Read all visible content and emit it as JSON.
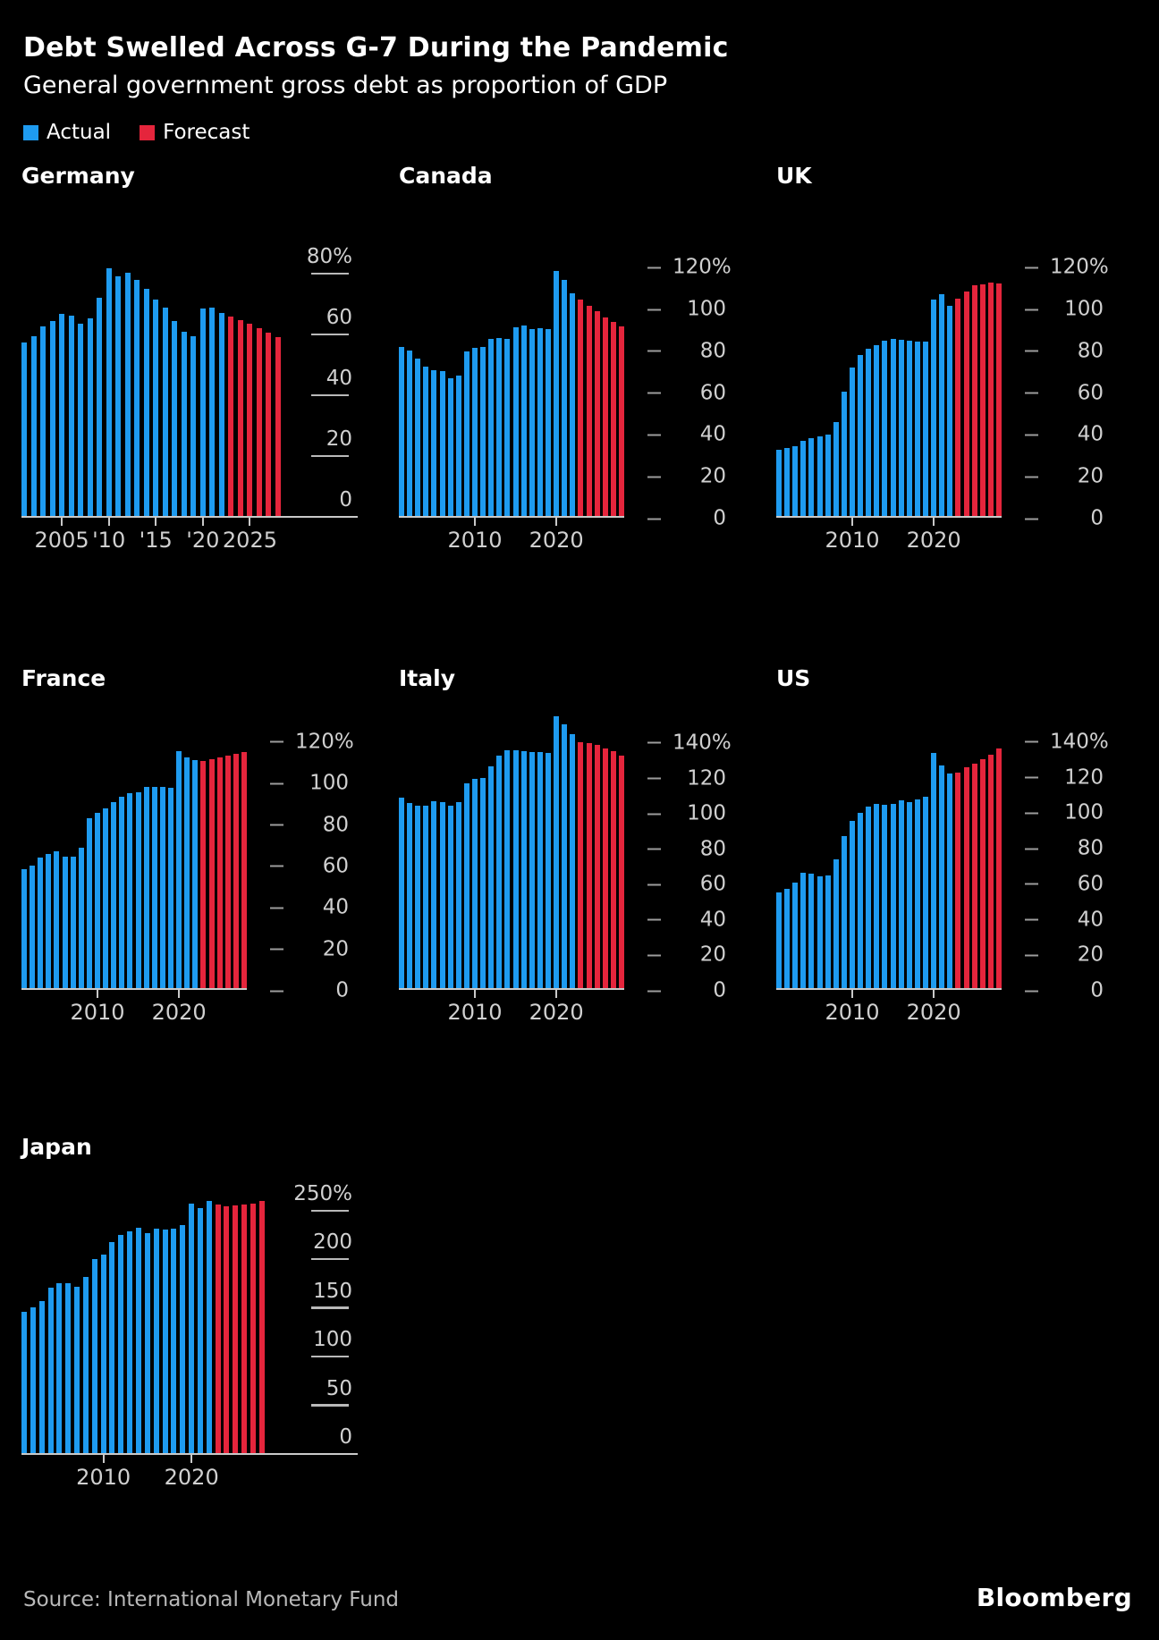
{
  "header": {
    "title": "Debt Swelled Across G-7 During the Pandemic",
    "subtitle": "General government gross debt as proportion of GDP",
    "legend": [
      {
        "label": "Actual",
        "color": "#1E9BF0"
      },
      {
        "label": "Forecast",
        "color": "#E5253C"
      }
    ]
  },
  "footer": {
    "source": "Source: International Monetary Fund",
    "brand": "Bloomberg"
  },
  "colors": {
    "actual": "#1E9BF0",
    "forecast": "#E5253C",
    "axis_text": "#d0d0d0",
    "baseline": "#c9c9c9"
  },
  "chart_data": [
    {
      "id": "germany",
      "title": "Germany",
      "type": "bar",
      "unit": "% of GDP",
      "first_year": 2001,
      "actual": [
        57.7,
        59.6,
        63.0,
        64.7,
        67.0,
        66.4,
        63.9,
        65.5,
        72.4,
        82.0,
        79.4,
        80.7,
        78.2,
        75.3,
        71.9,
        69.0,
        64.6,
        61.3,
        59.6,
        68.7,
        69.0,
        67.4
      ],
      "forecast": [
        66.2,
        65.1,
        63.9,
        62.5,
        61.0,
        59.5
      ],
      "axis_style": "between",
      "y_ticks": [
        {
          "v": 80,
          "label": "80%"
        },
        {
          "v": 60,
          "label": "60"
        },
        {
          "v": 40,
          "label": "40"
        },
        {
          "v": 20,
          "label": "20"
        },
        {
          "v": 0,
          "label": "0"
        }
      ],
      "x_ticks": [
        {
          "index": 4,
          "label": "2005"
        },
        {
          "index": 9,
          "label": "'10"
        },
        {
          "index": 14,
          "label": "'15"
        },
        {
          "index": 19,
          "label": "'20"
        },
        {
          "index": 24,
          "label": "2025"
        }
      ]
    },
    {
      "id": "canada",
      "title": "Canada",
      "type": "bar",
      "unit": "% of GDP",
      "first_year": 2001,
      "actual": [
        81.7,
        79.9,
        76.2,
        72.1,
        70.6,
        69.9,
        66.9,
        68.0,
        79.3,
        81.3,
        81.8,
        85.4,
        86.1,
        85.6,
        91.2,
        91.7,
        90.1,
        90.8,
        90.2,
        117.8,
        113.5,
        107.4
      ],
      "forecast": [
        104.5,
        101.5,
        98.6,
        95.9,
        93.5,
        91.5
      ],
      "axis_style": "dash",
      "y_ticks": [
        {
          "v": 120,
          "label": "120%"
        },
        {
          "v": 100,
          "label": "100"
        },
        {
          "v": 80,
          "label": "80"
        },
        {
          "v": 60,
          "label": "60"
        },
        {
          "v": 40,
          "label": "40"
        },
        {
          "v": 20,
          "label": "20"
        },
        {
          "v": 0,
          "label": "0"
        }
      ],
      "x_ticks": [
        {
          "index": 9,
          "label": "2010"
        },
        {
          "index": 19,
          "label": "2020"
        }
      ]
    },
    {
      "id": "uk",
      "title": "UK",
      "type": "bar",
      "unit": "% of GDP",
      "first_year": 2001,
      "actual": [
        32.5,
        33.3,
        34.3,
        36.6,
        38.1,
        38.7,
        39.6,
        45.9,
        60.4,
        71.7,
        77.9,
        81.0,
        82.6,
        84.5,
        85.3,
        85.1,
        84.7,
        84.4,
        84.0,
        104.1,
        106.8,
        101.4
      ],
      "forecast": [
        104.7,
        108.2,
        111.1,
        111.7,
        112.3,
        112.2
      ],
      "axis_style": "dash",
      "y_ticks": [
        {
          "v": 120,
          "label": "120%"
        },
        {
          "v": 100,
          "label": "100"
        },
        {
          "v": 80,
          "label": "80"
        },
        {
          "v": 60,
          "label": "60"
        },
        {
          "v": 40,
          "label": "40"
        },
        {
          "v": 20,
          "label": "20"
        },
        {
          "v": 0,
          "label": "0"
        }
      ],
      "x_ticks": [
        {
          "index": 9,
          "label": "2010"
        },
        {
          "index": 19,
          "label": "2020"
        }
      ]
    },
    {
      "id": "france",
      "title": "France",
      "type": "bar",
      "unit": "% of GDP",
      "first_year": 2001,
      "actual": [
        58.1,
        60.0,
        64.1,
        65.7,
        67.1,
        64.4,
        64.3,
        68.8,
        83.0,
        85.3,
        87.8,
        90.6,
        93.4,
        94.9,
        95.6,
        98.0,
        98.1,
        97.8,
        97.4,
        115.2,
        112.2,
        111.0
      ],
      "forecast": [
        110.4,
        111.2,
        112.1,
        113.0,
        113.9,
        114.8
      ],
      "axis_style": "dash",
      "y_ticks": [
        {
          "v": 120,
          "label": "120%"
        },
        {
          "v": 100,
          "label": "100"
        },
        {
          "v": 80,
          "label": "80"
        },
        {
          "v": 60,
          "label": "60"
        },
        {
          "v": 40,
          "label": "40"
        },
        {
          "v": 20,
          "label": "20"
        },
        {
          "v": 0,
          "label": "0"
        }
      ],
      "x_ticks": [
        {
          "index": 9,
          "label": "2010"
        },
        {
          "index": 19,
          "label": "2020"
        }
      ]
    },
    {
      "id": "italy",
      "title": "Italy",
      "type": "bar",
      "unit": "% of GDP",
      "first_year": 2001,
      "actual": [
        108.9,
        105.4,
        104.1,
        103.9,
        106.4,
        106.1,
        103.9,
        106.2,
        116.6,
        119.2,
        119.7,
        126.5,
        132.5,
        135.4,
        135.3,
        134.8,
        134.2,
        134.4,
        134.1,
        154.9,
        149.9,
        144.4
      ],
      "forecast": [
        140.0,
        139.5,
        138.3,
        136.6,
        134.9,
        132.5
      ],
      "axis_style": "dash",
      "y_ticks": [
        {
          "v": 140,
          "label": "140%"
        },
        {
          "v": 120,
          "label": "120"
        },
        {
          "v": 100,
          "label": "100"
        },
        {
          "v": 80,
          "label": "80"
        },
        {
          "v": 60,
          "label": "60"
        },
        {
          "v": 40,
          "label": "40"
        },
        {
          "v": 20,
          "label": "20"
        },
        {
          "v": 0,
          "label": "0"
        }
      ],
      "x_ticks": [
        {
          "index": 9,
          "label": "2010"
        },
        {
          "index": 19,
          "label": "2020"
        }
      ]
    },
    {
      "id": "us",
      "title": "US",
      "type": "bar",
      "unit": "% of GDP",
      "first_year": 2001,
      "actual": [
        55.0,
        57.1,
        60.2,
        66.2,
        65.5,
        64.2,
        64.7,
        73.6,
        86.7,
        95.4,
        99.7,
        103.2,
        104.8,
        104.4,
        104.7,
        106.8,
        105.9,
        107.1,
        108.7,
        133.5,
        126.4,
        121.7
      ],
      "forecast": [
        122.2,
        125.6,
        127.6,
        129.8,
        132.3,
        136.2
      ],
      "axis_style": "dash",
      "y_ticks": [
        {
          "v": 140,
          "label": "140%"
        },
        {
          "v": 120,
          "label": "120"
        },
        {
          "v": 100,
          "label": "100"
        },
        {
          "v": 80,
          "label": "80"
        },
        {
          "v": 60,
          "label": "60"
        },
        {
          "v": 40,
          "label": "40"
        },
        {
          "v": 20,
          "label": "20"
        },
        {
          "v": 0,
          "label": "0"
        }
      ],
      "x_ticks": [
        {
          "index": 9,
          "label": "2010"
        },
        {
          "index": 19,
          "label": "2020"
        }
      ]
    },
    {
      "id": "japan",
      "title": "Japan",
      "type": "bar",
      "unit": "% of GDP",
      "first_year": 2001,
      "actual": [
        146.8,
        152.0,
        158.0,
        171.6,
        176.6,
        176.3,
        172.8,
        183.3,
        200.9,
        205.7,
        219.1,
        226.1,
        229.6,
        233.5,
        228.3,
        232.4,
        231.4,
        232.5,
        236.4,
        258.6,
        253.9,
        261.3
      ],
      "forecast": [
        257.0,
        255.4,
        256.2,
        257.2,
        258.3,
        261.0
      ],
      "axis_style": "between",
      "y_ticks": [
        {
          "v": 250,
          "label": "250%"
        },
        {
          "v": 200,
          "label": "200"
        },
        {
          "v": 150,
          "label": "150"
        },
        {
          "v": 100,
          "label": "100"
        },
        {
          "v": 50,
          "label": "50"
        },
        {
          "v": 0,
          "label": "0"
        }
      ],
      "x_ticks": [
        {
          "index": 9,
          "label": "2010"
        },
        {
          "index": 19,
          "label": "2020"
        }
      ]
    }
  ]
}
